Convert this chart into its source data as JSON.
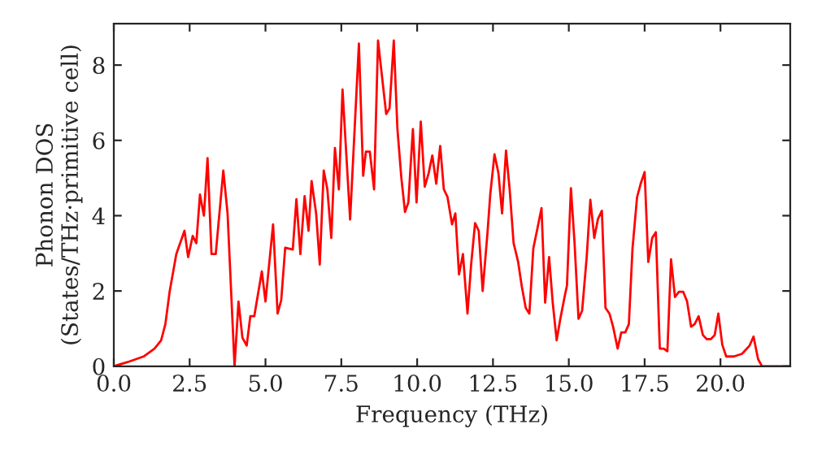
{
  "chart_data": {
    "type": "line",
    "xlabel": "Frequency (THz)",
    "ylabel": "Phonon DOS\n(States/THz·primitive cell)",
    "xlim": [
      0,
      22.3
    ],
    "ylim": [
      0,
      9.1
    ],
    "xticks": [
      {
        "value": 0,
        "label": "0.0"
      },
      {
        "value": 2.5,
        "label": "2.5"
      },
      {
        "value": 5,
        "label": "5.0"
      },
      {
        "value": 7.5,
        "label": "7.5"
      },
      {
        "value": 10,
        "label": "10.0"
      },
      {
        "value": 12.5,
        "label": "12.5"
      },
      {
        "value": 15,
        "label": "15.0"
      },
      {
        "value": 17.5,
        "label": "17.5"
      },
      {
        "value": 20,
        "label": "20.0"
      }
    ],
    "yticks": [
      0,
      2,
      4,
      6,
      8
    ],
    "grid": false,
    "legend": false,
    "marker": "none",
    "line_style": "solid",
    "series": [
      {
        "color": "#ff0000",
        "x": [
          0,
          0.45,
          0.98,
          1.34,
          1.56,
          1.7,
          1.84,
          2.06,
          2.33,
          2.45,
          2.6,
          2.72,
          2.84,
          2.97,
          3.09,
          3.22,
          3.36,
          3.61,
          3.75,
          3.98,
          4.11,
          4.24,
          4.38,
          4.5,
          4.63,
          4.88,
          5.0,
          5.25,
          5.4,
          5.52,
          5.65,
          5.9,
          6.02,
          6.15,
          6.29,
          6.42,
          6.52,
          6.67,
          6.79,
          6.92,
          7.04,
          7.17,
          7.29,
          7.42,
          7.54,
          7.79,
          8.08,
          8.22,
          8.31,
          8.44,
          8.58,
          8.71,
          8.98,
          9.09,
          9.23,
          9.35,
          9.48,
          9.6,
          9.71,
          9.86,
          9.98,
          10.12,
          10.25,
          10.38,
          10.5,
          10.63,
          10.76,
          10.88,
          11.0,
          11.15,
          11.26,
          11.38,
          11.51,
          11.66,
          11.78,
          11.91,
          12.03,
          12.16,
          12.32,
          12.41,
          12.55,
          12.68,
          12.8,
          12.93,
          13.05,
          13.18,
          13.33,
          13.45,
          13.58,
          13.7,
          13.83,
          13.95,
          14.1,
          14.22,
          14.35,
          14.47,
          14.6,
          14.72,
          14.86,
          14.94,
          15.07,
          15.19,
          15.32,
          15.44,
          15.59,
          15.71,
          15.84,
          15.96,
          16.09,
          16.21,
          16.34,
          16.46,
          16.61,
          16.73,
          16.86,
          16.98,
          17.1,
          17.25,
          17.37,
          17.5,
          17.62,
          17.75,
          17.87,
          18.0,
          18.13,
          18.25,
          18.37,
          18.5,
          18.63,
          18.77,
          18.9,
          19.03,
          19.15,
          19.28,
          19.42,
          19.55,
          19.68,
          19.81,
          19.93,
          20.06,
          20.19,
          20.44,
          20.71,
          20.96,
          21.09,
          21.24,
          21.37,
          22.3
        ],
        "values": [
          0,
          0.11,
          0.26,
          0.47,
          0.69,
          1.12,
          1.98,
          2.98,
          3.6,
          2.9,
          3.46,
          3.27,
          4.56,
          4.0,
          5.53,
          2.98,
          2.98,
          5.2,
          4.06,
          0,
          1.72,
          0.76,
          0.55,
          1.33,
          1.33,
          2.52,
          1.72,
          3.77,
          1.4,
          1.76,
          3.15,
          3.1,
          4.44,
          2.98,
          4.52,
          3.6,
          4.92,
          4.06,
          2.7,
          5.2,
          4.7,
          3.41,
          5.8,
          4.7,
          7.35,
          3.9,
          8.57,
          5.06,
          5.7,
          5.7,
          4.7,
          8.65,
          6.7,
          6.85,
          8.65,
          6.3,
          5.0,
          4.1,
          4.35,
          6.3,
          4.35,
          6.5,
          4.77,
          5.13,
          5.6,
          4.85,
          5.85,
          4.7,
          4.5,
          3.77,
          4.06,
          2.44,
          2.98,
          1.4,
          2.7,
          3.8,
          3.6,
          2.0,
          3.56,
          4.56,
          5.63,
          5.13,
          4.06,
          5.73,
          4.7,
          3.27,
          2.77,
          2.12,
          1.55,
          1.4,
          3.13,
          3.6,
          4.2,
          1.69,
          2.9,
          1.69,
          0.69,
          1.26,
          1.84,
          2.15,
          4.73,
          3.27,
          1.26,
          1.48,
          2.9,
          4.42,
          3.41,
          3.91,
          4.13,
          1.55,
          1.4,
          1.05,
          0.47,
          0.9,
          0.9,
          1.12,
          3.13,
          4.49,
          4.85,
          5.16,
          2.77,
          3.41,
          3.56,
          0.47,
          0.47,
          0.4,
          2.84,
          1.84,
          1.98,
          1.98,
          1.72,
          1.05,
          1.12,
          1.33,
          0.83,
          0.72,
          0.72,
          0.83,
          1.4,
          0.57,
          0.26,
          0.26,
          0.33,
          0.55,
          0.79,
          0.19,
          0,
          0
        ]
      }
    ]
  }
}
